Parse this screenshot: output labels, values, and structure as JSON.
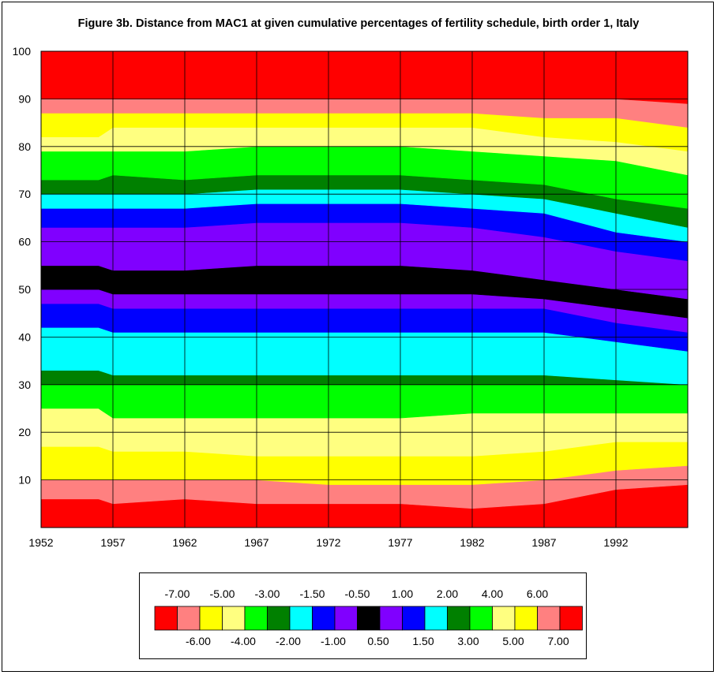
{
  "chart_data": {
    "type": "heatmap",
    "title": "Figure 3b. Distance from MAC1 at given cumulative percentages of fertility schedule, birth order 1, Italy",
    "xlabel": "",
    "ylabel": "",
    "x_range": [
      1952,
      1997
    ],
    "y_range": [
      0,
      100
    ],
    "x_tick_labels": [
      "1952",
      "1957",
      "1962",
      "1967",
      "1972",
      "1977",
      "1982",
      "1987",
      "1992"
    ],
    "x_ticks": [
      1952,
      1957,
      1962,
      1967,
      1972,
      1977,
      1982,
      1987,
      1992
    ],
    "y_tick_labels": [
      "100",
      "90",
      "80",
      "70",
      "60",
      "50",
      "40",
      "30",
      "20",
      "10"
    ],
    "y_ticks": [
      100,
      90,
      80,
      70,
      60,
      50,
      40,
      30,
      20,
      10
    ],
    "grid": true,
    "legend": {
      "position": "bottom",
      "top_labels": [
        "-7.00",
        "-5.00",
        "-3.00",
        "-1.50",
        "-0.50",
        "1.00",
        "2.00",
        "4.00",
        "6.00"
      ],
      "bottom_labels": [
        "-6.00",
        "-4.00",
        "-2.00",
        "-1.00",
        "0.50",
        "1.50",
        "3.00",
        "5.00",
        "7.00"
      ],
      "colors": [
        "#ff0000",
        "#ff8080",
        "#ffff00",
        "#ffff80",
        "#00ff00",
        "#008000",
        "#00ffff",
        "#0000ff",
        "#8000ff",
        "#000000",
        "#8000ff",
        "#0000ff",
        "#00ffff",
        "#008000",
        "#00ff00",
        "#ffff80",
        "#ffff00",
        "#ff8080",
        "#ff0000"
      ]
    },
    "band_order": [
      "-7",
      "-6",
      "-5",
      "-4",
      "-3",
      "-2",
      "-1.5",
      "-1",
      "-0.5",
      "0",
      "0.5",
      "1",
      "1.5",
      "2",
      "3",
      "4",
      "5",
      "6",
      "7+"
    ],
    "band_colors": [
      "#ff0000",
      "#ff8080",
      "#ffff00",
      "#ffff80",
      "#00ff00",
      "#008000",
      "#00ffff",
      "#0000ff",
      "#8000ff",
      "#000000",
      "#8000ff",
      "#0000ff",
      "#00ffff",
      "#008000",
      "#00ff00",
      "#ffff80",
      "#ffff00",
      "#ff8080",
      "#ff0000"
    ],
    "years": [
      1952,
      1956,
      1957,
      1962,
      1967,
      1972,
      1977,
      1982,
      1987,
      1992,
      1997
    ],
    "boundaries": [
      [
        6,
        10,
        17,
        25,
        30,
        33,
        42,
        47,
        50,
        55,
        63,
        67,
        70,
        73,
        79,
        82,
        87,
        90,
        91
      ],
      [
        6,
        10,
        17,
        25,
        30,
        33,
        42,
        47,
        50,
        55,
        63,
        67,
        70,
        73,
        79,
        82,
        87,
        90,
        92
      ],
      [
        5,
        10,
        16,
        23,
        30,
        32,
        41,
        46,
        49,
        54,
        63,
        67,
        70,
        74,
        79,
        84,
        87,
        90,
        92
      ],
      [
        6,
        10,
        16,
        23,
        30,
        32,
        41,
        46,
        49,
        54,
        63,
        67,
        70,
        73,
        79,
        84,
        87,
        90,
        92
      ],
      [
        5,
        10,
        15,
        23,
        30,
        32,
        41,
        46,
        49,
        55,
        64,
        68,
        71,
        74,
        80,
        84,
        87,
        90,
        92
      ],
      [
        5,
        9,
        15,
        23,
        30,
        32,
        41,
        46,
        49,
        55,
        64,
        68,
        71,
        74,
        80,
        84,
        87,
        90,
        92
      ],
      [
        5,
        9,
        15,
        23,
        30,
        32,
        41,
        46,
        49,
        55,
        64,
        68,
        71,
        74,
        80,
        84,
        87,
        90,
        92
      ],
      [
        4,
        9,
        15,
        24,
        30,
        32,
        41,
        46,
        49,
        54,
        63,
        67,
        70,
        73,
        79,
        84,
        87,
        90,
        93
      ],
      [
        5,
        10,
        16,
        24,
        30,
        32,
        41,
        46,
        48,
        52,
        61,
        66,
        69,
        72,
        78,
        82,
        86,
        90,
        93
      ],
      [
        8,
        12,
        18,
        24,
        30,
        31,
        39,
        43,
        46,
        50,
        58,
        62,
        66,
        69,
        77,
        81,
        86,
        90,
        93
      ],
      [
        9,
        13,
        18,
        24,
        30,
        30,
        37,
        41,
        44,
        48,
        56,
        60,
        63,
        67,
        74,
        79,
        84,
        89,
        93
      ]
    ]
  }
}
